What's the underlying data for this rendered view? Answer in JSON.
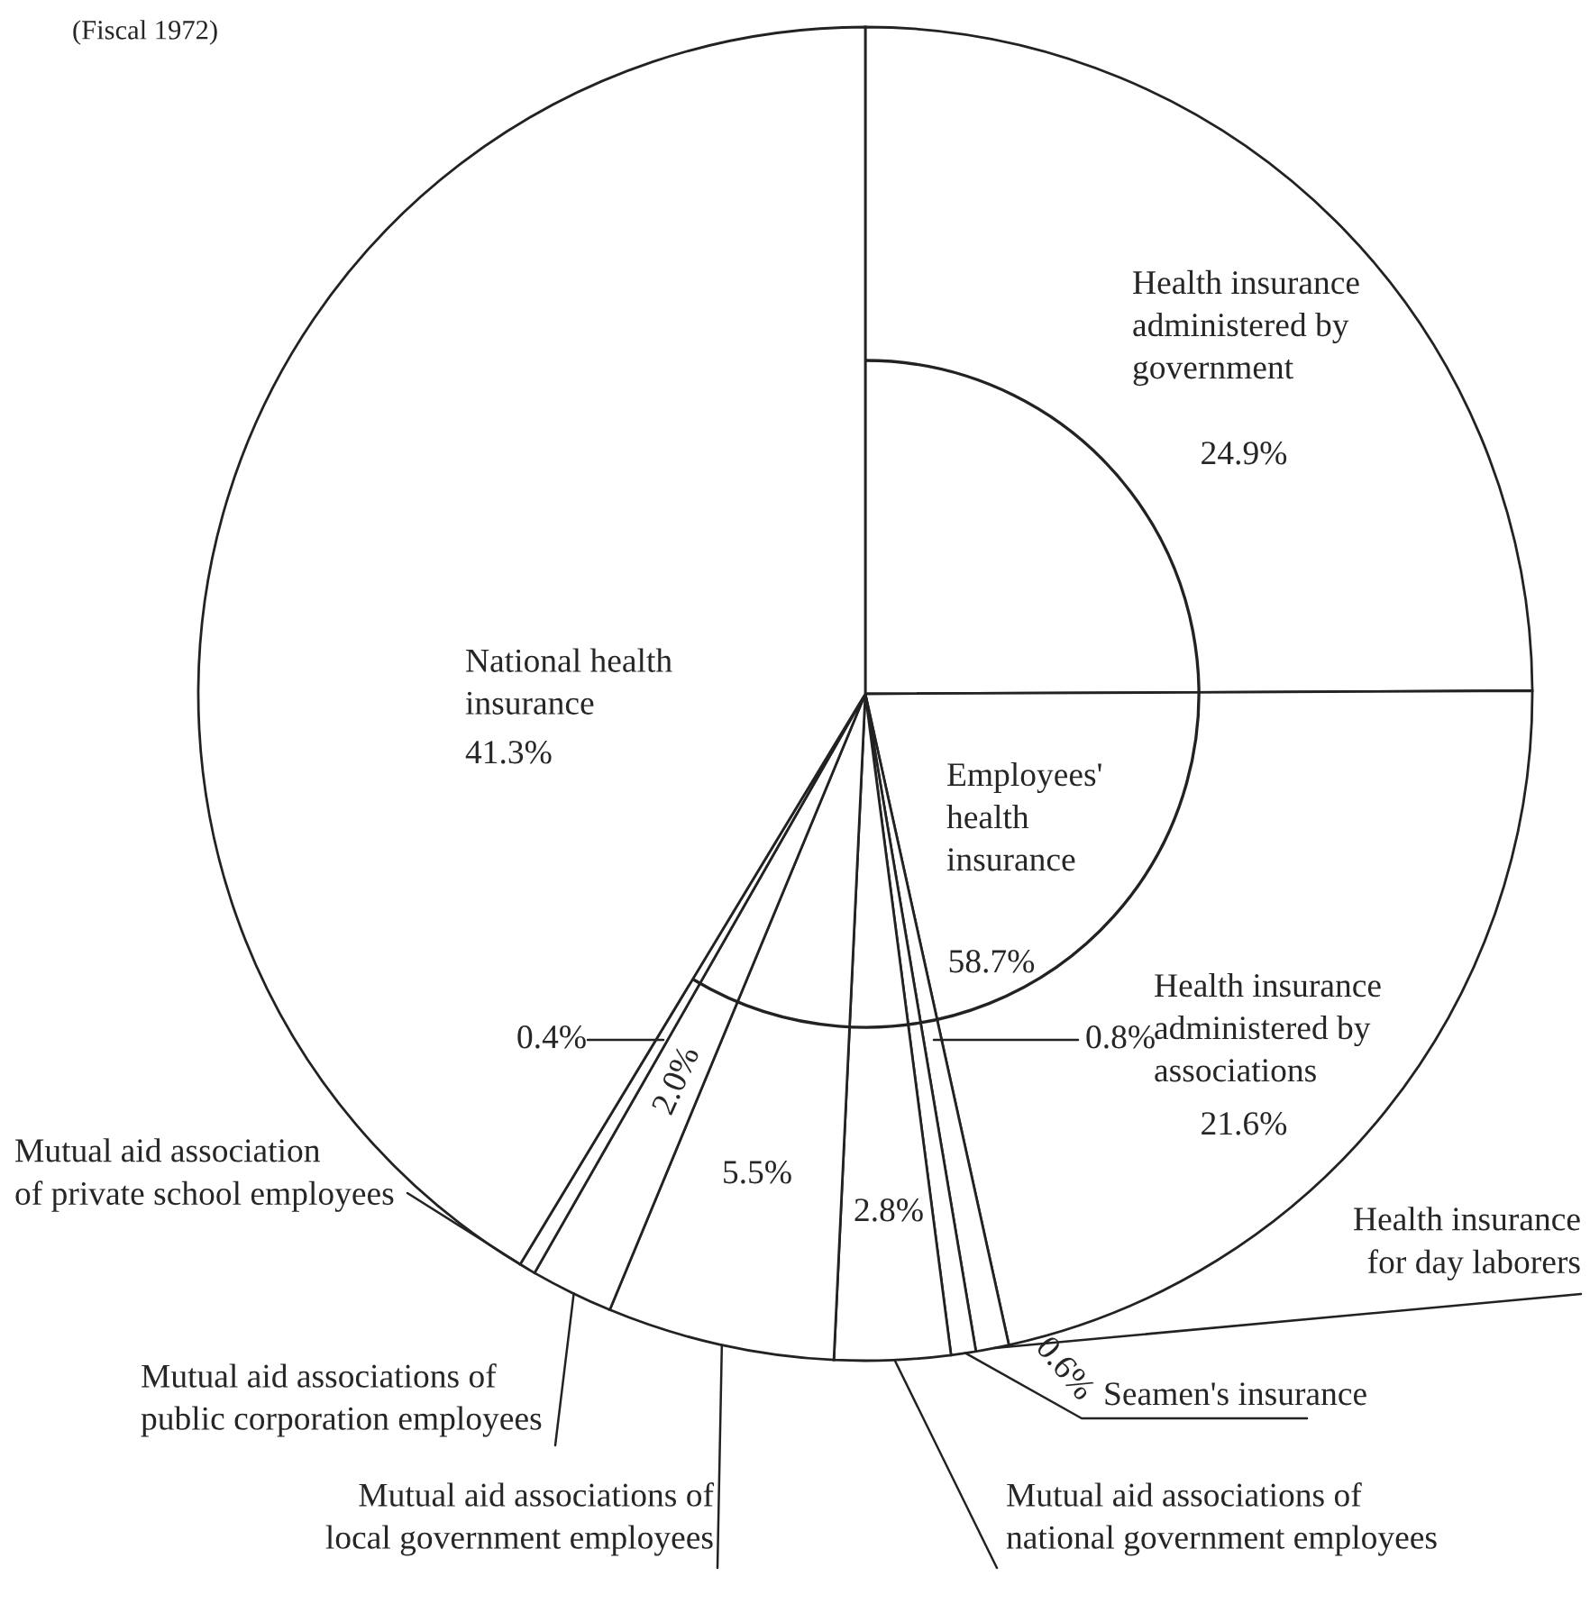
{
  "chart_data": {
    "type": "pie",
    "title": "(Fiscal 1972)",
    "categories": [
      "Health insurance\nadministered by\ngovernment",
      "Health insurance\nadministered by\nassociations",
      "Health insurance\nfor day laborers",
      "Seamen's insurance",
      "Mutual aid associations of\nnational government employees",
      "Mutual aid associations of\nlocal government employees",
      "Mutual aid associations of\npublic corporation employees",
      "Mutual aid association\nof private school employees",
      "National health\ninsurance"
    ],
    "values": [
      24.9,
      21.6,
      0.8,
      0.6,
      2.8,
      5.5,
      2.0,
      0.4,
      41.3
    ],
    "colors": [
      "#ffffff",
      "#ffffff",
      "#ffffff",
      "#ffffff",
      "#ffffff",
      "#ffffff",
      "#ffffff",
      "#ffffff",
      "#ffffff"
    ],
    "value_labels": [
      "24.9%",
      "21.6%",
      "0.8%",
      "0.6%",
      "2.8%",
      "5.5%",
      "2.0%",
      "0.4%",
      "41.3%"
    ],
    "annotations": [
      "Employees'\nhealth\ninsurance",
      "58.7%"
    ]
  }
}
